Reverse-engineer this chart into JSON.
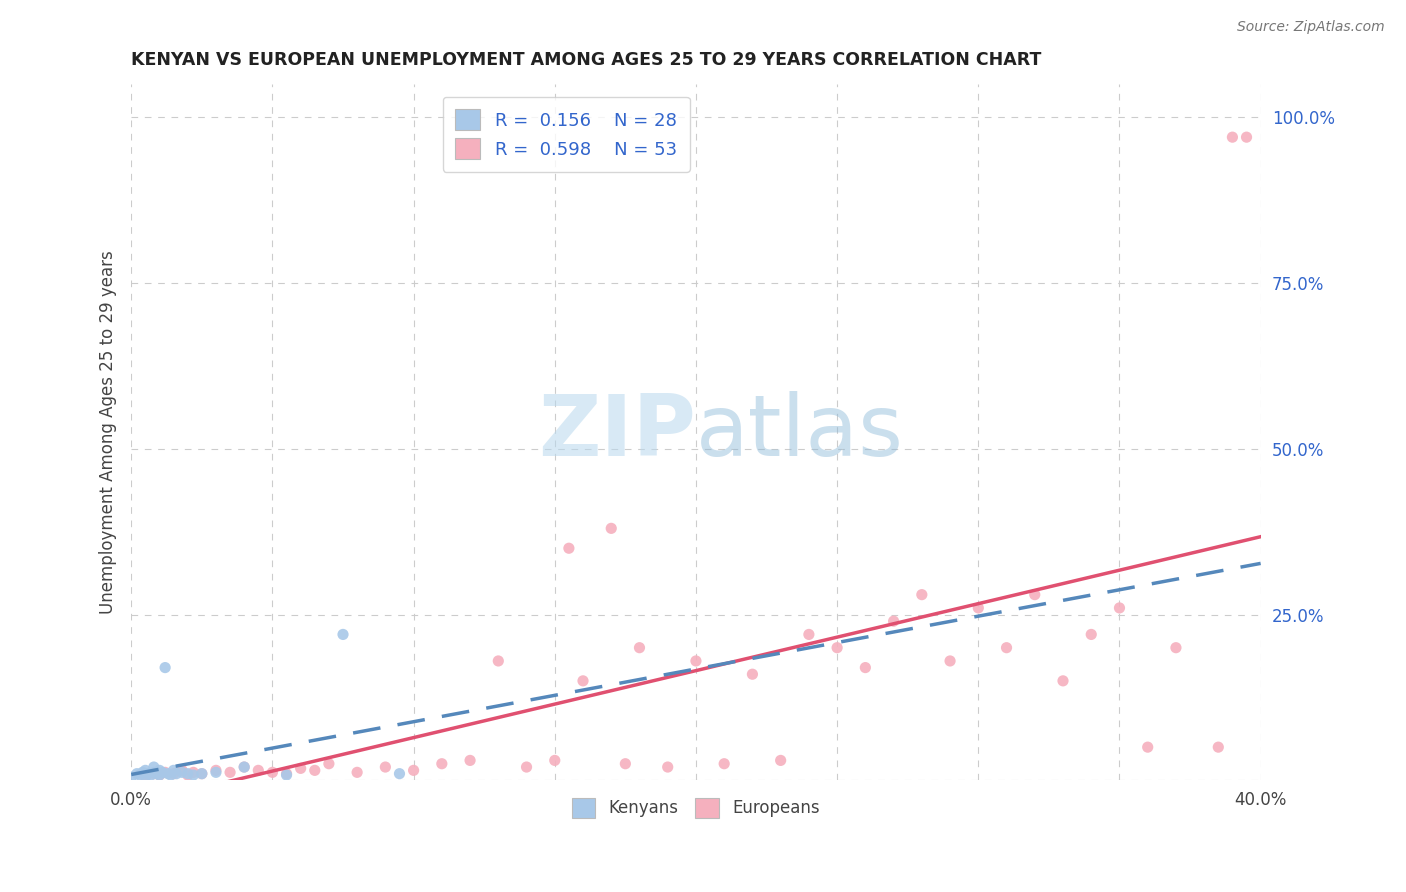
{
  "title": "KENYAN VS EUROPEAN UNEMPLOYMENT AMONG AGES 25 TO 29 YEARS CORRELATION CHART",
  "source": "Source: ZipAtlas.com",
  "ylabel": "Unemployment Among Ages 25 to 29 years",
  "xlim": [
    0.0,
    0.4
  ],
  "ylim": [
    0.0,
    1.05
  ],
  "ytick_vals": [
    0.0,
    0.25,
    0.5,
    0.75,
    1.0
  ],
  "ytick_labels_right": [
    "",
    "25.0%",
    "50.0%",
    "75.0%",
    "100.0%"
  ],
  "xtick_vals": [
    0.0,
    0.05,
    0.1,
    0.15,
    0.2,
    0.25,
    0.3,
    0.35,
    0.4
  ],
  "xtick_labels": [
    "0.0%",
    "",
    "",
    "",
    "",
    "",
    "",
    "",
    "40.0%"
  ],
  "color_kenyan_scatter": "#a8c8e8",
  "color_kenyan_line": "#5588bb",
  "color_european_scatter": "#f5b0be",
  "color_european_line": "#e05070",
  "color_blue_text": "#3366cc",
  "color_title": "#222222",
  "color_grid": "#cccccc",
  "color_bg": "#ffffff",
  "watermark_text": "ZIPatlas",
  "watermark_color": "#cce4f5",
  "kenyan_x": [
    0.0,
    0.002,
    0.003,
    0.004,
    0.005,
    0.005,
    0.006,
    0.007,
    0.008,
    0.008,
    0.009,
    0.01,
    0.01,
    0.011,
    0.012,
    0.013,
    0.014,
    0.015,
    0.016,
    0.018,
    0.02,
    0.022,
    0.025,
    0.03,
    0.04,
    0.055,
    0.075,
    0.095
  ],
  "kenyan_y": [
    0.005,
    0.01,
    0.008,
    0.012,
    0.006,
    0.015,
    0.01,
    0.008,
    0.012,
    0.02,
    0.01,
    0.015,
    0.008,
    0.012,
    0.17,
    0.01,
    0.008,
    0.015,
    0.01,
    0.012,
    0.01,
    0.008,
    0.01,
    0.012,
    0.02,
    0.008,
    0.22,
    0.01
  ],
  "european_x": [
    0.005,
    0.008,
    0.01,
    0.012,
    0.015,
    0.018,
    0.02,
    0.022,
    0.025,
    0.03,
    0.035,
    0.04,
    0.045,
    0.05,
    0.055,
    0.06,
    0.065,
    0.07,
    0.08,
    0.09,
    0.1,
    0.11,
    0.12,
    0.13,
    0.14,
    0.15,
    0.155,
    0.16,
    0.17,
    0.175,
    0.18,
    0.19,
    0.2,
    0.21,
    0.22,
    0.23,
    0.24,
    0.25,
    0.26,
    0.27,
    0.28,
    0.29,
    0.3,
    0.31,
    0.32,
    0.33,
    0.34,
    0.35,
    0.36,
    0.37,
    0.385,
    0.39,
    0.395
  ],
  "european_y": [
    0.005,
    0.01,
    0.008,
    0.012,
    0.01,
    0.015,
    0.008,
    0.012,
    0.01,
    0.015,
    0.012,
    0.02,
    0.015,
    0.012,
    0.01,
    0.018,
    0.015,
    0.025,
    0.012,
    0.02,
    0.015,
    0.025,
    0.03,
    0.18,
    0.02,
    0.03,
    0.35,
    0.15,
    0.38,
    0.025,
    0.2,
    0.02,
    0.18,
    0.025,
    0.16,
    0.03,
    0.22,
    0.2,
    0.17,
    0.24,
    0.28,
    0.18,
    0.26,
    0.2,
    0.28,
    0.15,
    0.22,
    0.26,
    0.05,
    0.2,
    0.05,
    0.97,
    0.97
  ]
}
